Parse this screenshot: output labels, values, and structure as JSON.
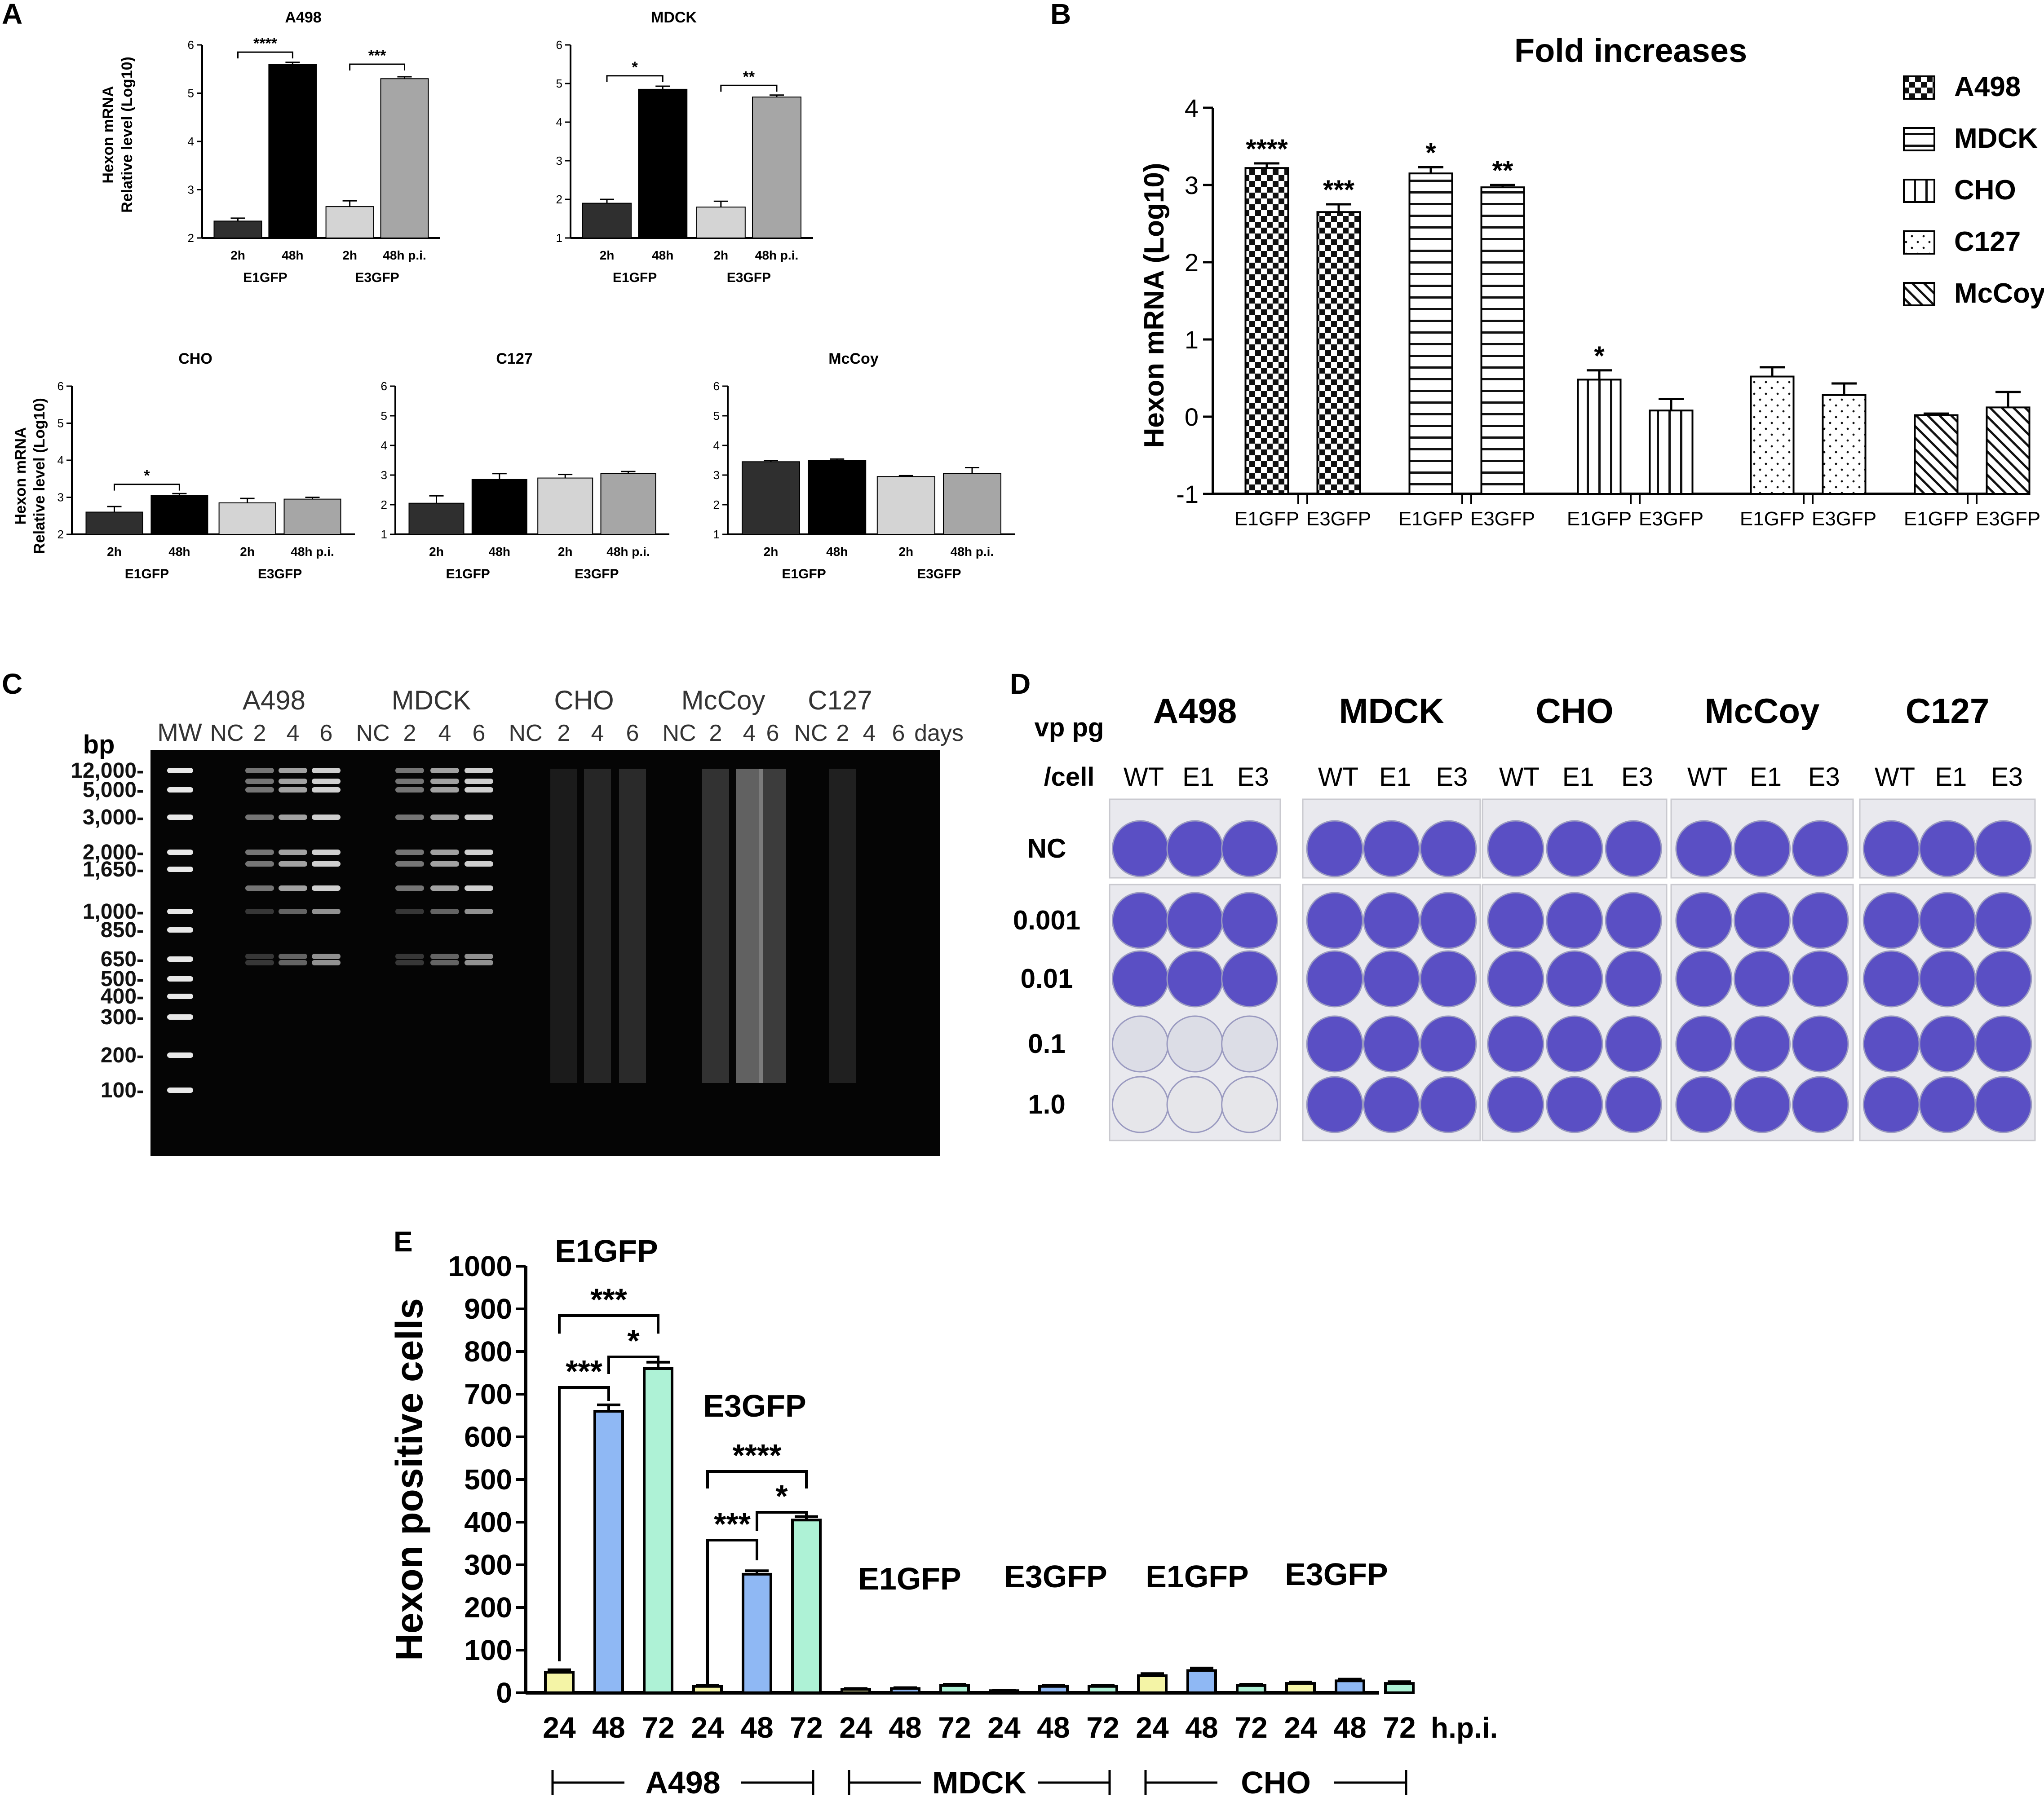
{
  "panels": {
    "A": "A",
    "B": "B",
    "C": "C",
    "D": "D",
    "E": "E"
  },
  "panelA": {
    "ylabel1": "Hexon  mRNA",
    "ylabel2": "Relative level (Log10)",
    "xtick_2h": "2h",
    "xtick_48h": "48h",
    "xtick_48h_pi": "48h p.i.",
    "group1": "E1GFP",
    "group2": "E3GFP",
    "colors": [
      "#2f2f2f",
      "#000000",
      "#d4d4d4",
      "#a6a6a6"
    ],
    "charts": [
      {
        "title": "A498",
        "ylim": [
          2,
          6
        ],
        "values": [
          2.35,
          5.6,
          2.65,
          5.3
        ],
        "errors": [
          0.06,
          0.04,
          0.12,
          0.04
        ],
        "sig": [
          {
            "from": 0,
            "to": 1,
            "label": "****",
            "y": 5.85
          },
          {
            "from": 2,
            "to": 3,
            "label": "***",
            "y": 5.6
          }
        ]
      },
      {
        "title": "MDCK",
        "ylim": [
          1,
          6
        ],
        "values": [
          1.9,
          4.85,
          1.8,
          4.65
        ],
        "errors": [
          0.1,
          0.08,
          0.15,
          0.05
        ],
        "sig": [
          {
            "from": 0,
            "to": 1,
            "label": "*",
            "y": 5.2
          },
          {
            "from": 2,
            "to": 3,
            "label": "**",
            "y": 4.95
          }
        ]
      },
      {
        "title": "CHO",
        "ylim": [
          2,
          6
        ],
        "values": [
          2.6,
          3.05,
          2.85,
          2.95
        ],
        "errors": [
          0.15,
          0.05,
          0.12,
          0.05
        ],
        "sig": [
          {
            "from": 0,
            "to": 1,
            "label": "*",
            "y": 3.35
          }
        ]
      },
      {
        "title": "C127",
        "ylim": [
          1,
          6
        ],
        "values": [
          2.05,
          2.85,
          2.9,
          3.05
        ],
        "errors": [
          0.25,
          0.2,
          0.12,
          0.07
        ],
        "sig": []
      },
      {
        "title": "McCoy",
        "ylim": [
          1,
          6
        ],
        "values": [
          3.45,
          3.5,
          2.95,
          3.05
        ],
        "errors": [
          0.04,
          0.04,
          0.03,
          0.2
        ],
        "sig": []
      }
    ]
  },
  "chart_data": [
    {
      "type": "bar",
      "title": "Fold increases",
      "ylabel": "Hexon  mRNA (Log10)",
      "ylim": [
        -1,
        4
      ],
      "yticks": [
        "-1",
        "0",
        "1",
        "2",
        "3",
        "4"
      ],
      "xtick_labels": [
        "E1GFP",
        "E3GFP"
      ],
      "legend_position": "top-right",
      "series": [
        {
          "name": "A498",
          "values": [
            3.22,
            2.65
          ],
          "errors": [
            0.06,
            0.1
          ],
          "sig": [
            "****",
            "***"
          ]
        },
        {
          "name": "MDCK",
          "values": [
            3.15,
            2.97
          ],
          "errors": [
            0.08,
            0.03
          ],
          "sig": [
            "*",
            "**"
          ]
        },
        {
          "name": "CHO",
          "values": [
            0.48,
            0.08
          ],
          "errors": [
            0.12,
            0.15
          ],
          "sig": [
            "*",
            ""
          ]
        },
        {
          "name": "C127",
          "values": [
            0.52,
            0.28
          ],
          "errors": [
            0.12,
            0.15
          ],
          "sig": [
            "",
            ""
          ]
        },
        {
          "name": "McCoy",
          "values": [
            0.02,
            0.12
          ],
          "errors": [
            0.02,
            0.2
          ],
          "sig": [
            "",
            ""
          ]
        }
      ]
    },
    {
      "type": "bar",
      "title": "",
      "ylabel": "Hexon positive cells",
      "xlabel_unit": "h.p.i.",
      "ylim": [
        0,
        1000
      ],
      "yticks": [
        "0",
        "100",
        "200",
        "300",
        "400",
        "500",
        "600",
        "700",
        "800",
        "900",
        "1000"
      ],
      "time_labels": [
        "24",
        "48",
        "72"
      ],
      "time_colors": [
        "#f4f4a6",
        "#8fb8f4",
        "#aef2d6"
      ],
      "groups": [
        {
          "cell": "A498",
          "virus": "E1GFP",
          "values": [
            48,
            660,
            760
          ],
          "errors": [
            6,
            15,
            15
          ]
        },
        {
          "cell": "A498",
          "virus": "E3GFP",
          "values": [
            15,
            278,
            405
          ],
          "errors": [
            2,
            8,
            8
          ]
        },
        {
          "cell": "MDCK",
          "virus": "E1GFP",
          "values": [
            8,
            10,
            17
          ],
          "errors": [
            2,
            2,
            3
          ]
        },
        {
          "cell": "MDCK",
          "virus": "E3GFP",
          "values": [
            5,
            15,
            15
          ],
          "errors": [
            1,
            2,
            2
          ]
        },
        {
          "cell": "CHO",
          "virus": "E1GFP",
          "values": [
            40,
            52,
            17
          ],
          "errors": [
            5,
            6,
            3
          ]
        },
        {
          "cell": "CHO",
          "virus": "E3GFP",
          "values": [
            22,
            28,
            22
          ],
          "errors": [
            3,
            4,
            4
          ]
        }
      ],
      "cell_labels": [
        "A498",
        "MDCK",
        "CHO"
      ],
      "annotations": {
        "e1_title": "E1GFP",
        "e3_title": "E3GFP",
        "e1_top": "***",
        "e1_mid": "*",
        "e1_low": "***",
        "e3_top": "****",
        "e3_mid": "*",
        "e3_low": "***",
        "mdck_e1": "E1GFP",
        "mdck_e3": "E3GFP",
        "cho_e1": "E1GFP",
        "cho_e3": "E3GFP"
      }
    }
  ],
  "gel": {
    "groups": [
      "A498",
      "MDCK",
      "CHO",
      "McCoy",
      "C127"
    ],
    "mw_label": "MW",
    "nc_label": "NC",
    "days_labels": [
      "2",
      "4",
      "6"
    ],
    "days_unit": "days",
    "bp_label": "bp",
    "markers": [
      "12,000-",
      "5,000-",
      "3,000-",
      "2,000-",
      "1,650-",
      "1,000-",
      "850-",
      "650-",
      "500-",
      "400-",
      "300-",
      "200-",
      "100-"
    ]
  },
  "plates": {
    "row_header": [
      "vp pg",
      "/cell"
    ],
    "cells": [
      "A498",
      "MDCK",
      "CHO",
      "McCoy",
      "C127"
    ],
    "columns": [
      "WT",
      "E1",
      "E3"
    ],
    "rows": [
      "NC",
      "0.001",
      "0.01",
      "0.1",
      "1.0"
    ],
    "well_color": "#5a4fc4"
  }
}
